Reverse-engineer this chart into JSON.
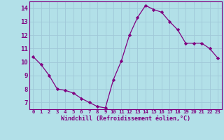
{
  "x": [
    0,
    1,
    2,
    3,
    4,
    5,
    6,
    7,
    8,
    9,
    10,
    11,
    12,
    13,
    14,
    15,
    16,
    17,
    18,
    19,
    20,
    21,
    22,
    23
  ],
  "y": [
    10.4,
    9.8,
    9.0,
    8.0,
    7.9,
    7.7,
    7.3,
    7.0,
    6.7,
    6.6,
    8.7,
    10.1,
    12.0,
    13.3,
    14.2,
    13.9,
    13.7,
    13.0,
    12.4,
    11.4,
    11.4,
    11.4,
    11.0,
    10.3
  ],
  "line_color": "#800080",
  "marker": "D",
  "marker_size": 2.2,
  "bg_color": "#b2e0e8",
  "grid_color": "#c8e8f0",
  "xlabel": "Windchill (Refroidissement éolien,°C)",
  "xlim": [
    -0.5,
    23.5
  ],
  "ylim": [
    6.5,
    14.5
  ],
  "yticks": [
    7,
    8,
    9,
    10,
    11,
    12,
    13,
    14
  ],
  "xticks": [
    0,
    1,
    2,
    3,
    4,
    5,
    6,
    7,
    8,
    9,
    10,
    11,
    12,
    13,
    14,
    15,
    16,
    17,
    18,
    19,
    20,
    21,
    22,
    23
  ],
  "tick_color": "#800080",
  "label_color": "#800080",
  "spine_color": "#800080",
  "grid_line_color": "#a0c8d8",
  "xlabel_fontsize": 6.0,
  "ytick_fontsize": 6.5,
  "xtick_fontsize": 5.2
}
